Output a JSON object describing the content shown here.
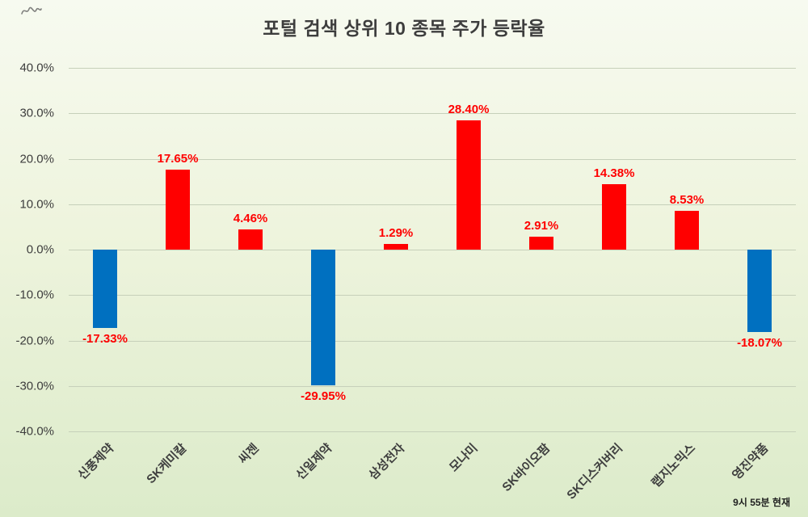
{
  "title": "포털 검색 상위 10 종목 주가 등락율",
  "footnote": "9시  55분 현재",
  "chart_data": {
    "type": "bar",
    "title": "포털 검색 상위 10 종목 주가 등락율",
    "categories": [
      "신풍제약",
      "SK케미칼",
      "씨젠",
      "신일제약",
      "삼성전자",
      "모나미",
      "SK바이오팜",
      "SK디스커버리",
      "랩지노믹스",
      "영진약품"
    ],
    "values": [
      -17.33,
      17.65,
      4.46,
      -29.95,
      1.29,
      28.4,
      2.91,
      14.38,
      8.53,
      -18.07
    ],
    "labels": [
      "-17.33%",
      "17.65%",
      "4.46%",
      "-29.95%",
      "1.29%",
      "28.40%",
      "2.91%",
      "14.38%",
      "8.53%",
      "-18.07%"
    ],
    "xlabel": "",
    "ylabel": "",
    "ylim": [
      -40,
      40
    ],
    "ytick_step": 10,
    "ytick_labels": [
      "40.0%",
      "30.0%",
      "20.0%",
      "10.0%",
      "0.0%",
      "-10.0%",
      "-20.0%",
      "-30.0%",
      "-40.0%"
    ],
    "grid": true,
    "legend": "none",
    "positive_color": "#ff0000",
    "negative_color": "#0070c0",
    "label_color": "#ff0000",
    "gridline_color": "#c6d0ba"
  }
}
